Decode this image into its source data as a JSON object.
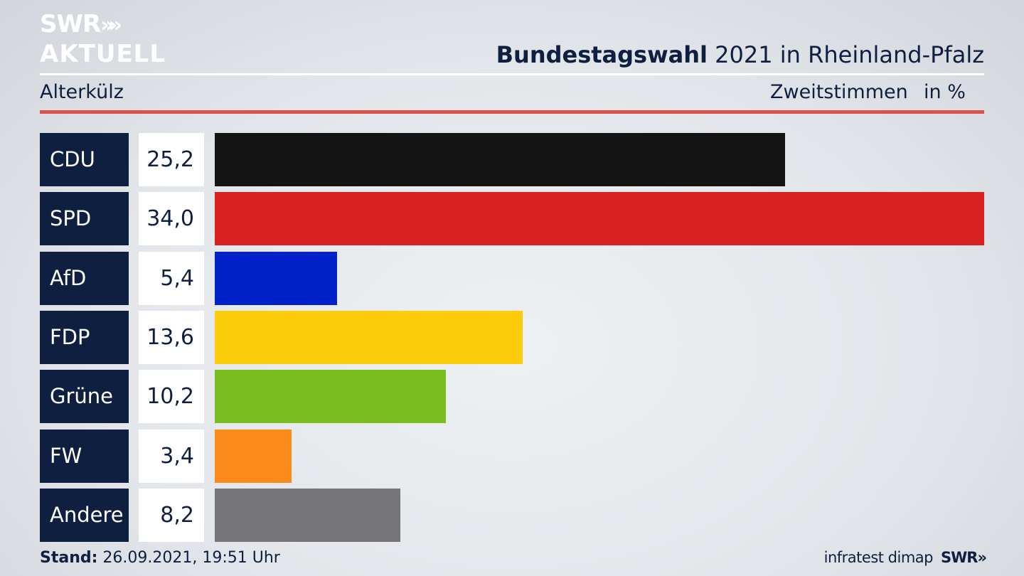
{
  "brand": {
    "logo_line1": "SWR",
    "logo_line2": "AKTUELL",
    "logo_chevrons": "»",
    "footer_logo": "SWR»"
  },
  "header": {
    "title_bold": "Bundestagswahl",
    "title_rest": " 2021 in Rheinland-Pfalz",
    "location": "Alterkülz",
    "vote_type": "Zweitstimmen",
    "unit": "in %"
  },
  "colors": {
    "accent_red_rule": "#d9534a",
    "navy": "#0e1f3f"
  },
  "chart_data": {
    "type": "bar",
    "orientation": "horizontal",
    "categories": [
      "CDU",
      "SPD",
      "AfD",
      "FDP",
      "Grüne",
      "FW",
      "Andere"
    ],
    "values": [
      25.2,
      34.0,
      5.4,
      13.6,
      10.2,
      3.4,
      8.2
    ],
    "value_labels": [
      "25,2",
      "34,0",
      "5,4",
      "13,6",
      "10,2",
      "3,4",
      "8,2"
    ],
    "colors": [
      "#141414",
      "#d92121",
      "#0022c8",
      "#fdcc0a",
      "#79be1e",
      "#fb8b1a",
      "#757578"
    ],
    "xlim": [
      0,
      34.0
    ]
  },
  "footer": {
    "stand_label": "Stand:",
    "stand_value": " 26.09.2021, 19:51 Uhr",
    "source": "infratest dimap"
  }
}
